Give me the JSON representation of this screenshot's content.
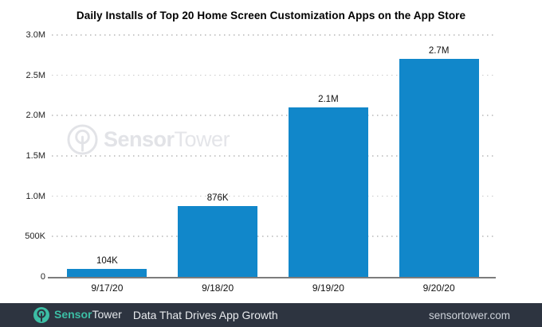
{
  "chart_data": {
    "type": "bar",
    "title": "Daily Installs of Top 20 Home Screen Customization Apps on the App Store",
    "categories": [
      "9/17/20",
      "9/18/20",
      "9/19/20",
      "9/20/20"
    ],
    "values": [
      104000,
      876000,
      2100000,
      2700000
    ],
    "value_labels": [
      "104K",
      "876K",
      "2.1M",
      "2.7M"
    ],
    "xlabel": "",
    "ylabel": "",
    "ylim": [
      0,
      3000000
    ],
    "y_ticks": [
      {
        "label": "3.0M",
        "value": 3000000
      },
      {
        "label": "2.5M",
        "value": 2500000
      },
      {
        "label": "2.0M",
        "value": 2000000
      },
      {
        "label": "1.5M",
        "value": 1500000
      },
      {
        "label": "1.0M",
        "value": 1000000
      },
      {
        "label": "500K",
        "value": 500000
      },
      {
        "label": "0",
        "value": 0
      }
    ],
    "grid": "horizontal-dotted",
    "legend": "none",
    "bar_color": "#1187ca"
  },
  "watermark": {
    "brand_bold": "Sensor",
    "brand_light": "Tower",
    "color": "#e2e3e7"
  },
  "footer": {
    "brand_bold": "Sensor",
    "brand_light": "Tower",
    "tagline": "Data That Drives App Growth",
    "website": "sensortower.com",
    "background": "#2d3440",
    "accent": "#3cbea5"
  }
}
